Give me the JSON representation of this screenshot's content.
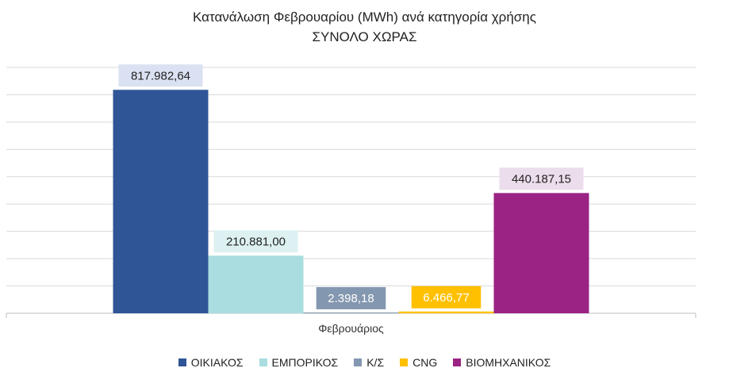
{
  "chart_data": {
    "type": "bar",
    "title": "Κατανάλωση Φεβρουαρίου (MWh) ανά κατηγορία χρήσης",
    "subtitle": "ΣΥΝΟΛΟ ΧΩΡΑΣ",
    "categories": [
      "Φεβρουάριος"
    ],
    "series": [
      {
        "name": "ΟΙΚΙΑΚΟΣ",
        "values": [
          817982.64
        ],
        "label": "817.982,64",
        "color": "#2F5597",
        "label_bg": "#D9E1F2",
        "label_color": "#222222"
      },
      {
        "name": "ΕΜΠΟΡΙΚΟΣ",
        "values": [
          210881.0
        ],
        "label": "210.881,00",
        "color": "#A9DDE0",
        "label_bg": "#DDF1F2",
        "label_color": "#222222"
      },
      {
        "name": "Κ/Σ",
        "values": [
          2398.18
        ],
        "label": "2.398,18",
        "color": "#8497B0",
        "label_bg": "#8497B0",
        "label_color": "#ffffff"
      },
      {
        "name": "CNG",
        "values": [
          6466.77
        ],
        "label": "6.466,77",
        "color": "#FFC000",
        "label_bg": "#FFC000",
        "label_color": "#ffffff"
      },
      {
        "name": "ΒΙΟΜΗΧΑΝΙΚΟΣ",
        "values": [
          440187.15
        ],
        "label": "440.187,15",
        "color": "#9B2384",
        "label_bg": "#EBDDEB",
        "label_color": "#222222"
      }
    ],
    "xlabel": "",
    "ylabel": "",
    "ylim": [
      0,
      900000
    ],
    "y_axis_visible": false,
    "grid": true,
    "legend_position": "bottom"
  }
}
